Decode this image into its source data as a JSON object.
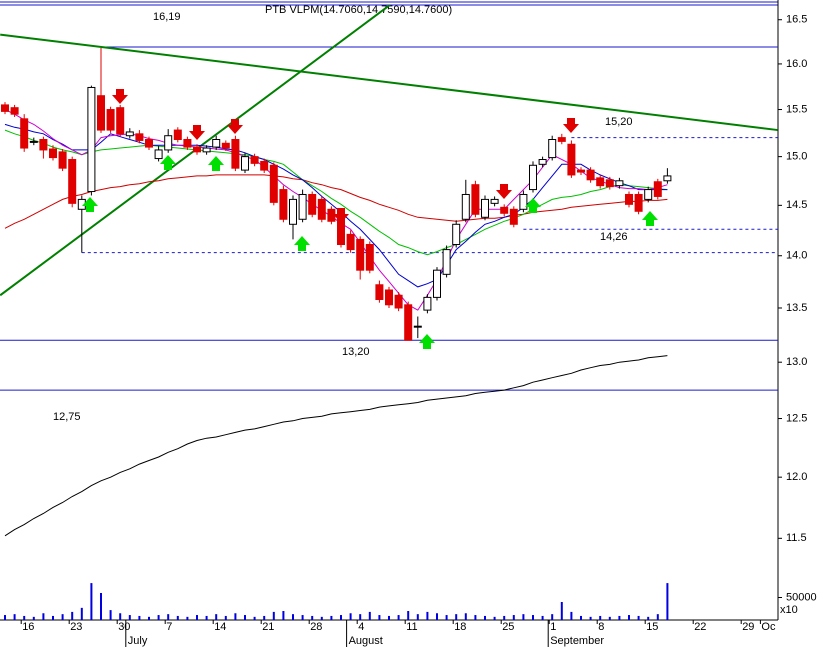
{
  "chart_data": {
    "type": "candlestick",
    "title": "PTB VLPM(14.7060,14.7590,14.7600)",
    "categories": [
      null,
      null,
      "16",
      null,
      null,
      null,
      null,
      "23",
      null,
      null,
      null,
      null,
      "30",
      null,
      null,
      null,
      null,
      "7",
      null,
      null,
      null,
      null,
      "14",
      null,
      null,
      null,
      null,
      "21",
      null,
      null,
      null,
      null,
      "28",
      null,
      null,
      null,
      null,
      "4",
      null,
      null,
      null,
      null,
      "11",
      null,
      null,
      null,
      null,
      "18",
      null,
      null,
      null,
      null,
      "25",
      null,
      null,
      null,
      null,
      "1",
      null,
      null,
      null,
      null,
      "8",
      null,
      null,
      null,
      null,
      "15",
      null,
      null,
      null,
      null,
      "22",
      null,
      null,
      null,
      null,
      "29",
      null,
      "Oc"
    ],
    "month_categories": [
      null,
      null,
      null,
      null,
      null,
      null,
      null,
      null,
      null,
      null,
      null,
      null,
      null,
      "July",
      null,
      null,
      null,
      null,
      null,
      null,
      null,
      null,
      null,
      null,
      null,
      null,
      null,
      null,
      null,
      null,
      null,
      null,
      null,
      null,
      null,
      null,
      "August",
      null,
      null,
      null,
      null,
      null,
      null,
      null,
      null,
      null,
      null,
      null,
      null,
      null,
      null,
      null,
      null,
      null,
      null,
      null,
      null,
      "September",
      null,
      null,
      null,
      null,
      null,
      null,
      null,
      null,
      null,
      null,
      null,
      null,
      null,
      null,
      null,
      null,
      null,
      null,
      null,
      null,
      null,
      null
    ],
    "open": [
      15.55,
      15.52,
      15.4,
      15.16,
      15.18,
      15.08,
      15.05,
      14.97,
      14.46,
      14.64,
      15.65,
      15.5,
      15.52,
      15.22,
      15.24,
      15.18,
      14.98,
      15.07,
      15.28,
      15.18,
      15.1,
      15.05,
      15.1,
      15.14,
      15.18,
      14.86,
      15.0,
      14.95,
      14.91,
      14.66,
      14.31,
      14.36,
      14.61,
      14.56,
      14.46,
      14.41,
      14.21,
      14.16,
      14.11,
      13.72,
      13.67,
      13.62,
      13.53,
      13.33,
      13.48,
      13.6,
      13.82,
      14.11,
      14.36,
      14.71,
      14.38,
      14.52,
      14.48,
      14.46,
      14.46,
      14.66,
      14.92,
      14.99,
      15.2,
      15.13,
      14.86,
      14.86,
      14.78,
      14.76,
      14.7,
      14.61,
      14.61,
      14.56,
      14.74,
      14.75,
      null,
      null,
      null,
      null,
      null,
      null,
      null,
      null,
      null,
      null
    ],
    "high": [
      15.58,
      15.55,
      15.45,
      15.2,
      15.21,
      15.12,
      15.08,
      15.0,
      14.6,
      15.76,
      16.18,
      15.53,
      15.55,
      15.3,
      15.28,
      15.21,
      15.11,
      15.29,
      15.31,
      15.21,
      15.13,
      15.12,
      15.22,
      15.17,
      15.22,
      15.04,
      15.03,
      14.98,
      14.94,
      14.7,
      14.6,
      14.66,
      14.64,
      14.59,
      14.49,
      14.44,
      14.25,
      14.19,
      14.14,
      13.76,
      13.7,
      13.65,
      13.56,
      13.42,
      13.63,
      13.89,
      14.1,
      14.35,
      14.76,
      14.75,
      14.6,
      14.59,
      14.51,
      14.49,
      14.65,
      14.95,
      15.0,
      15.22,
      15.24,
      15.17,
      14.89,
      14.89,
      14.81,
      14.79,
      14.78,
      14.64,
      14.64,
      14.69,
      14.77,
      14.88,
      null,
      null,
      null,
      null,
      null,
      null,
      null,
      null,
      null,
      null
    ],
    "low": [
      15.45,
      15.42,
      15.05,
      15.12,
      14.98,
      14.96,
      14.85,
      14.48,
      14.03,
      14.6,
      15.25,
      15.25,
      15.21,
      15.19,
      15.14,
      15.07,
      14.95,
      15.04,
      15.15,
      15.07,
      15.02,
      15.02,
      15.07,
      15.06,
      14.85,
      14.83,
      14.9,
      14.83,
      14.5,
      14.33,
      14.16,
      14.33,
      14.38,
      14.33,
      14.31,
      14.08,
      14.03,
      13.77,
      13.83,
      13.55,
      13.5,
      13.47,
      13.2,
      13.22,
      13.45,
      13.57,
      13.79,
      14.08,
      14.33,
      14.38,
      14.35,
      14.49,
      14.39,
      14.28,
      14.43,
      14.63,
      14.89,
      14.96,
      15.13,
      14.78,
      14.81,
      14.73,
      14.67,
      14.66,
      14.67,
      14.48,
      14.41,
      14.53,
      14.56,
      14.72,
      null,
      null,
      null,
      null,
      null,
      null,
      null,
      null,
      null,
      null
    ],
    "close": [
      15.48,
      15.45,
      15.09,
      15.16,
      15.07,
      14.99,
      14.88,
      14.52,
      14.56,
      15.74,
      15.28,
      15.28,
      15.24,
      15.26,
      15.17,
      15.1,
      15.07,
      15.22,
      15.18,
      15.1,
      15.05,
      15.09,
      15.18,
      15.09,
      14.88,
      15.0,
      14.93,
      14.86,
      14.53,
      14.36,
      14.56,
      14.61,
      14.41,
      14.36,
      14.34,
      14.11,
      14.06,
      13.86,
      13.86,
      13.58,
      13.53,
      13.5,
      13.2,
      13.33,
      13.6,
      13.86,
      14.06,
      14.31,
      14.61,
      14.41,
      14.56,
      14.56,
      14.42,
      14.31,
      14.61,
      14.91,
      14.97,
      15.18,
      15.16,
      14.81,
      14.84,
      14.76,
      14.7,
      14.69,
      14.75,
      14.51,
      14.44,
      14.66,
      14.59,
      14.8,
      null,
      null,
      null,
      null,
      null,
      null,
      null,
      null,
      null,
      null
    ],
    "up_color": "#ffffff",
    "down_color": "#e00000",
    "series": [
      {
        "color": "#d000d0",
        "values": [
          15.5,
          15.45,
          15.39,
          15.34,
          15.27,
          15.19,
          15.12,
          15.07,
          15.02,
          15.07,
          15.2,
          15.22,
          15.23,
          15.24,
          15.22,
          15.19,
          15.17,
          15.14,
          15.12,
          15.11,
          15.1,
          15.09,
          15.08,
          15.07,
          15.04,
          15.0,
          14.97,
          14.89,
          14.8,
          14.71,
          14.64,
          14.58,
          14.51,
          14.45,
          14.39,
          14.32,
          14.26,
          14.13,
          13.99,
          13.86,
          13.75,
          13.64,
          13.53,
          13.48,
          13.62,
          13.77,
          13.96,
          14.16,
          14.31,
          14.46,
          14.46,
          14.46,
          14.46,
          14.56,
          14.66,
          14.76,
          14.89,
          15.02,
          14.97,
          14.92,
          14.85,
          14.78,
          14.75,
          14.71,
          14.68,
          14.67,
          14.67,
          14.66,
          14.68,
          14.71,
          null,
          null,
          null,
          null,
          null,
          null,
          null,
          null,
          null,
          null
        ]
      },
      {
        "color": "#0000d0",
        "values": [
          15.34,
          15.31,
          15.29,
          15.26,
          15.24,
          15.18,
          15.13,
          15.07,
          15.07,
          15.07,
          15.15,
          15.24,
          15.21,
          15.18,
          15.15,
          15.12,
          15.12,
          15.12,
          15.12,
          15.12,
          15.12,
          15.11,
          15.1,
          15.08,
          15.07,
          15.04,
          15.0,
          14.97,
          14.92,
          14.87,
          14.81,
          14.76,
          14.68,
          14.59,
          14.51,
          14.43,
          14.34,
          14.26,
          14.16,
          14.06,
          13.94,
          13.82,
          13.76,
          13.7,
          13.73,
          13.77,
          13.91,
          14.06,
          14.14,
          14.23,
          14.31,
          14.34,
          14.38,
          14.41,
          14.48,
          14.56,
          14.68,
          14.8,
          14.92,
          14.92,
          14.92,
          14.86,
          14.81,
          14.77,
          14.73,
          14.7,
          14.66,
          14.66,
          14.66,
          14.66,
          null,
          null,
          null,
          null,
          null,
          null,
          null,
          null,
          null,
          null
        ]
      },
      {
        "color": "#00c000",
        "values": [
          15.28,
          15.24,
          15.21,
          15.17,
          15.14,
          15.1,
          15.07,
          15.05,
          15.02,
          15.05,
          15.07,
          15.08,
          15.09,
          15.1,
          15.11,
          15.12,
          15.11,
          15.1,
          15.09,
          15.08,
          15.07,
          15.06,
          15.05,
          15.04,
          15.03,
          15.02,
          15.0,
          14.97,
          14.95,
          14.92,
          14.84,
          14.76,
          14.7,
          14.64,
          14.57,
          14.51,
          14.44,
          14.38,
          14.31,
          14.24,
          14.18,
          14.11,
          14.08,
          14.04,
          14.01,
          14.04,
          14.08,
          14.11,
          14.16,
          14.21,
          14.26,
          14.3,
          14.34,
          14.37,
          14.41,
          14.46,
          14.51,
          14.56,
          14.58,
          14.59,
          14.61,
          14.64,
          14.66,
          14.69,
          14.71,
          14.7,
          14.69,
          14.68,
          14.67,
          14.66,
          null,
          null,
          null,
          null,
          null,
          null,
          null,
          null,
          null,
          null
        ]
      },
      {
        "color": "#d00000",
        "values": [
          14.27,
          14.32,
          14.36,
          14.41,
          14.46,
          14.51,
          14.56,
          14.59,
          14.61,
          14.64,
          14.66,
          14.68,
          14.69,
          14.71,
          14.72,
          14.74,
          14.75,
          14.77,
          14.78,
          14.79,
          14.8,
          14.8,
          14.81,
          14.81,
          14.81,
          14.81,
          14.81,
          14.81,
          14.8,
          14.79,
          14.77,
          14.76,
          14.73,
          14.71,
          14.68,
          14.66,
          14.62,
          14.58,
          14.55,
          14.51,
          14.48,
          14.45,
          14.41,
          14.38,
          14.37,
          14.36,
          14.35,
          14.34,
          14.35,
          14.36,
          14.37,
          14.37,
          14.38,
          14.4,
          14.41,
          14.43,
          14.44,
          14.45,
          14.46,
          14.48,
          14.49,
          14.5,
          14.51,
          14.52,
          14.53,
          14.54,
          14.54,
          14.55,
          14.55,
          14.56,
          null,
          null,
          null,
          null,
          null,
          null,
          null,
          null,
          null,
          null
        ]
      },
      {
        "color": "#000000",
        "values": [
          11.52,
          11.57,
          11.61,
          11.66,
          11.7,
          11.75,
          11.79,
          11.84,
          11.88,
          11.93,
          11.97,
          12.0,
          12.04,
          12.07,
          12.11,
          12.14,
          12.17,
          12.21,
          12.24,
          12.28,
          12.31,
          12.33,
          12.34,
          12.36,
          12.38,
          12.4,
          12.41,
          12.43,
          12.45,
          12.47,
          12.48,
          12.5,
          12.51,
          12.52,
          12.54,
          12.55,
          12.56,
          12.57,
          12.58,
          12.6,
          12.61,
          12.62,
          12.63,
          12.64,
          12.66,
          12.67,
          12.68,
          12.69,
          12.7,
          12.72,
          12.73,
          12.74,
          12.75,
          12.77,
          12.79,
          12.82,
          12.84,
          12.86,
          12.88,
          12.9,
          12.93,
          12.95,
          12.97,
          12.98,
          13.0,
          13.01,
          13.02,
          13.04,
          13.05,
          13.06,
          null,
          null,
          null,
          null,
          null,
          null,
          null,
          null,
          null,
          null
        ]
      }
    ],
    "trendlines": [
      {
        "color": "#008000",
        "x": [
          -0.5,
          80.5
        ],
        "values": [
          16.33,
          15.28
        ]
      },
      {
        "color": "#008000",
        "x": [
          -0.5,
          40.1
        ],
        "values": [
          13.62,
          16.67
        ]
      }
    ],
    "levels": [
      {
        "value": 16.19,
        "label": "16,19",
        "dashed": false,
        "from": 10
      },
      {
        "value": 15.2,
        "label": "15,20",
        "dashed": true,
        "from": 59
      },
      {
        "value": 14.26,
        "label": "14,26",
        "dashed": true,
        "from": 54
      },
      {
        "value": 14.03,
        "dashed": true,
        "from": 8
      },
      {
        "value": 13.2,
        "label": "13,20",
        "dashed": false,
        "from": 0
      },
      {
        "value": 12.75,
        "label": "12,75",
        "dashed": false,
        "from": 0
      }
    ],
    "level_color": "#1a1acc",
    "ylim": [
      11.21,
      16.67
    ],
    "log_scale": true,
    "yticks": [
      11.5,
      {
        "value": 12,
        "label": "12.0"
      },
      12.5,
      {
        "value": 13,
        "label": "13.0"
      },
      13.5,
      {
        "value": 14,
        "label": "14.0"
      },
      14.5,
      {
        "value": 15,
        "label": "15.0"
      },
      15.5,
      {
        "value": 16,
        "label": "16.0"
      },
      16.5
    ],
    "volume": [
      11000,
      13000,
      9000,
      7000,
      15000,
      9000,
      13000,
      18000,
      27000,
      82000,
      60000,
      22000,
      15000,
      11000,
      9000,
      7000,
      11000,
      13000,
      9000,
      7000,
      11000,
      9000,
      13000,
      9000,
      15000,
      11000,
      7000,
      9000,
      18000,
      20000,
      13000,
      11000,
      9000,
      7000,
      9000,
      11000,
      15000,
      13000,
      18000,
      11000,
      9000,
      11000,
      20000,
      13000,
      18000,
      15000,
      11000,
      13000,
      15000,
      11000,
      9000,
      7000,
      9000,
      11000,
      13000,
      11000,
      9000,
      13000,
      40000,
      18000,
      9000,
      7000,
      9000,
      7000,
      9000,
      11000,
      9000,
      7000,
      13000,
      82000,
      null,
      null,
      null,
      null,
      null,
      null,
      null,
      null,
      null,
      null
    ],
    "volume_color": "#0000e0",
    "volume_ylim": [
      0,
      100000
    ],
    "volume_yticks": [
      50000
    ],
    "volume_unit": "x10"
  }
}
